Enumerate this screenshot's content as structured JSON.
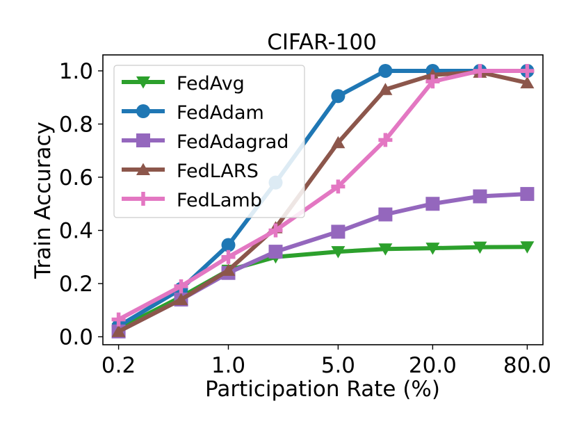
{
  "chart_data": {
    "type": "line",
    "title": "CIFAR-100",
    "xlabel": "Participation Rate (%)",
    "ylabel": "Train Accuracy",
    "x": [
      0.2,
      0.5,
      1.0,
      2.0,
      5.0,
      10.0,
      20.0,
      40.0,
      80.0
    ],
    "x_scale": "log",
    "xticks": [
      "0.2",
      "1.0",
      "5.0",
      "20.0",
      "80.0"
    ],
    "xtick_values": [
      0.2,
      1.0,
      5.0,
      20.0,
      80.0
    ],
    "ylim": [
      -0.03,
      1.06
    ],
    "yticks": [
      "0.0",
      "0.2",
      "0.4",
      "0.6",
      "0.8",
      "1.0"
    ],
    "ytick_values": [
      0.0,
      0.2,
      0.4,
      0.6,
      0.8,
      1.0
    ],
    "grid": false,
    "legend_position": "top-left",
    "series": [
      {
        "name": "FedAvg",
        "color": "#2ca02c",
        "marker": "triangle-down",
        "values": [
          0.03,
          0.15,
          0.25,
          0.3,
          0.32,
          0.33,
          0.333,
          0.337,
          0.338
        ]
      },
      {
        "name": "FedAdam",
        "color": "#1f77b4",
        "marker": "circle",
        "values": [
          0.04,
          0.18,
          0.345,
          0.58,
          0.905,
          1.0,
          1.0,
          1.0,
          1.0
        ]
      },
      {
        "name": "FedAdagrad",
        "color": "#9467bd",
        "marker": "square",
        "values": [
          0.02,
          0.14,
          0.24,
          0.32,
          0.395,
          0.46,
          0.5,
          0.528,
          0.537
        ]
      },
      {
        "name": "FedLARS",
        "color": "#8c564b",
        "marker": "triangle-up",
        "values": [
          0.02,
          0.14,
          0.25,
          0.41,
          0.73,
          0.93,
          0.985,
          0.995,
          0.955
        ]
      },
      {
        "name": "FedLamb",
        "color": "#e377c2",
        "marker": "plus",
        "values": [
          0.065,
          0.19,
          0.3,
          0.4,
          0.565,
          0.74,
          0.96,
          1.0,
          1.0
        ]
      }
    ]
  }
}
